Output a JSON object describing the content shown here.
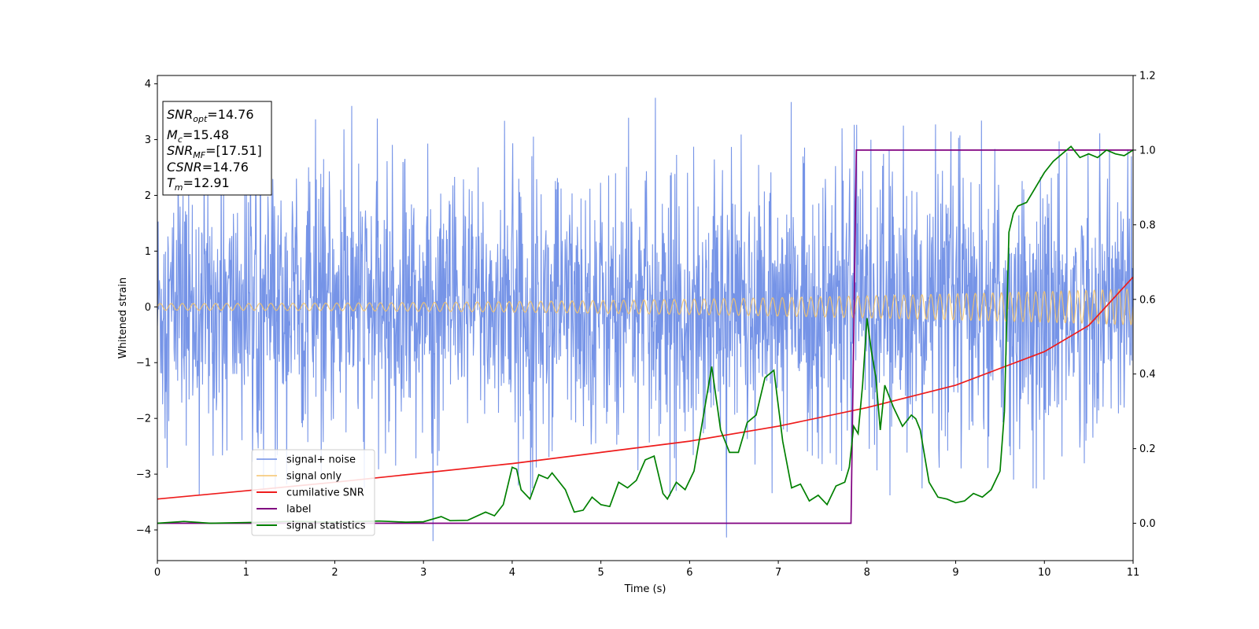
{
  "chart_data": {
    "type": "line",
    "title": "",
    "xlabel": "Time (s)",
    "ylabel": "Whitened strain",
    "y2label": "",
    "xlim": [
      0,
      11
    ],
    "ylim": [
      -4.55,
      4.15
    ],
    "y2lim": [
      -0.1,
      1.2
    ],
    "xticks": [
      0,
      1,
      2,
      3,
      4,
      5,
      6,
      7,
      8,
      9,
      10,
      11
    ],
    "yticks": [
      -4,
      -3,
      -2,
      -1,
      0,
      1,
      2,
      3,
      4
    ],
    "y2ticks": [
      0.0,
      0.2,
      0.4,
      0.6,
      0.8,
      1.0,
      1.2
    ],
    "xtick_labels": [
      "0",
      "1",
      "2",
      "3",
      "4",
      "5",
      "6",
      "7",
      "8",
      "9",
      "10",
      "11"
    ],
    "ytick_labels": [
      "−4",
      "−3",
      "−2",
      "−1",
      "0",
      "1",
      "2",
      "3",
      "4"
    ],
    "y2tick_labels": [
      "0.0",
      "0.2",
      "0.4",
      "0.6",
      "0.8",
      "1.0",
      "1.2"
    ],
    "grid": false,
    "legend_position": "lower-left",
    "series": [
      {
        "name": "signal+ noise",
        "axis": "left",
        "color": "#6f8ee6",
        "kind": "noise",
        "envelope": {
          "typical_amplitude": 1.1,
          "peak_amplitude": 3.4,
          "min_value": -4.2,
          "max_value": 3.75
        }
      },
      {
        "name": "signal only",
        "axis": "left",
        "color": "#f5c46c",
        "kind": "chirp",
        "amplitude_start": 0.06,
        "amplitude_end": 0.32,
        "frequency_start_hz": 8,
        "frequency_end_hz": 11
      },
      {
        "name": "cumilative SNR",
        "axis": "right",
        "color": "#ee1c1c",
        "x": [
          0,
          1,
          2,
          3,
          4,
          5,
          6,
          7,
          8,
          9,
          10,
          10.5,
          11
        ],
        "y": [
          0.065,
          0.087,
          0.11,
          0.135,
          0.16,
          0.19,
          0.22,
          0.26,
          0.31,
          0.37,
          0.46,
          0.53,
          0.66
        ]
      },
      {
        "name": "label",
        "axis": "right",
        "color": "#800080",
        "x": [
          0,
          7.82,
          7.88,
          11
        ],
        "y": [
          0.0,
          0.0,
          1.0,
          1.0
        ]
      },
      {
        "name": "signal statistics",
        "axis": "right",
        "color": "#008000",
        "x": [
          0,
          0.3,
          0.6,
          1.0,
          1.5,
          2.0,
          2.5,
          2.8,
          3.0,
          3.2,
          3.3,
          3.5,
          3.7,
          3.8,
          3.9,
          4.0,
          4.05,
          4.1,
          4.2,
          4.3,
          4.4,
          4.45,
          4.5,
          4.6,
          4.7,
          4.8,
          4.9,
          5.0,
          5.1,
          5.2,
          5.3,
          5.4,
          5.5,
          5.6,
          5.7,
          5.75,
          5.85,
          5.95,
          6.05,
          6.15,
          6.25,
          6.35,
          6.45,
          6.55,
          6.65,
          6.75,
          6.85,
          6.95,
          7.05,
          7.15,
          7.25,
          7.35,
          7.45,
          7.55,
          7.65,
          7.75,
          7.8,
          7.85,
          7.9,
          7.95,
          8.0,
          8.05,
          8.1,
          8.15,
          8.2,
          8.3,
          8.4,
          8.5,
          8.55,
          8.6,
          8.7,
          8.8,
          8.9,
          9.0,
          9.1,
          9.2,
          9.3,
          9.4,
          9.5,
          9.55,
          9.6,
          9.65,
          9.7,
          9.8,
          9.9,
          10.0,
          10.1,
          10.2,
          10.3,
          10.4,
          10.5,
          10.6,
          10.7,
          10.8,
          10.9,
          11.0
        ],
        "y": [
          0.0,
          0.005,
          0.0,
          0.002,
          0.005,
          0.003,
          0.006,
          0.003,
          0.004,
          0.018,
          0.007,
          0.008,
          0.03,
          0.02,
          0.05,
          0.15,
          0.145,
          0.09,
          0.065,
          0.13,
          0.12,
          0.135,
          0.12,
          0.09,
          0.03,
          0.035,
          0.07,
          0.05,
          0.045,
          0.11,
          0.095,
          0.115,
          0.17,
          0.18,
          0.08,
          0.065,
          0.11,
          0.09,
          0.14,
          0.28,
          0.42,
          0.25,
          0.19,
          0.19,
          0.27,
          0.29,
          0.39,
          0.41,
          0.22,
          0.095,
          0.105,
          0.06,
          0.075,
          0.05,
          0.1,
          0.11,
          0.15,
          0.26,
          0.24,
          0.37,
          0.55,
          0.46,
          0.39,
          0.25,
          0.37,
          0.31,
          0.26,
          0.29,
          0.28,
          0.25,
          0.11,
          0.07,
          0.065,
          0.055,
          0.06,
          0.08,
          0.07,
          0.09,
          0.14,
          0.3,
          0.78,
          0.83,
          0.85,
          0.86,
          0.9,
          0.94,
          0.97,
          0.99,
          1.01,
          0.98,
          0.99,
          0.98,
          1.0,
          0.99,
          0.985,
          1.0
        ]
      }
    ],
    "annotation_box": {
      "lines": [
        {
          "base": "SNR",
          "sub": "opt",
          "rest": "=14.76"
        },
        {
          "base": "M",
          "sub": "c",
          "rest": "=15.48"
        },
        {
          "base": "SNR",
          "sub": "MF",
          "rest": "=[17.51]"
        },
        {
          "base": "CSNR",
          "sub": "",
          "rest": "=14.76"
        },
        {
          "base": "T",
          "sub": "m",
          "rest": "=12.91"
        }
      ]
    }
  }
}
